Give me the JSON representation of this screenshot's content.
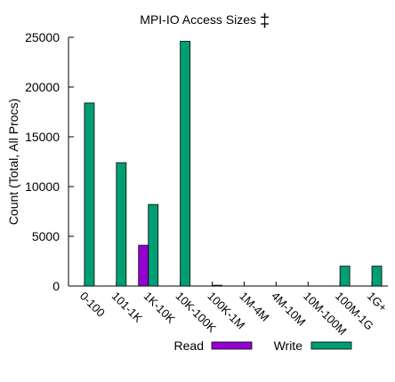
{
  "chart_data": {
    "type": "bar",
    "title": "MPI-IO Access Sizes",
    "title_symbol": "‡",
    "ylabel": "Count (Total, All Procs)",
    "xlabel": "",
    "ylim": [
      0,
      25000
    ],
    "yticks": [
      "0",
      "5000",
      "10000",
      "15000",
      "20000",
      "25000"
    ],
    "grid": false,
    "legend_position": "bottom",
    "categories": [
      "0-100",
      "101-1K",
      "1K-10K",
      "10K-100K",
      "100K-1M",
      "1M-4M",
      "4M-10M",
      "10M-100M",
      "100M-1G",
      "1G+"
    ],
    "series": [
      {
        "name": "Read",
        "color": "#9400d3",
        "values": [
          0,
          0,
          4100,
          0,
          0,
          0,
          0,
          0,
          0,
          0
        ]
      },
      {
        "name": "Write",
        "color": "#009e73",
        "values": [
          18400,
          12400,
          8200,
          24600,
          80,
          0,
          0,
          0,
          2000,
          2000
        ]
      }
    ]
  }
}
